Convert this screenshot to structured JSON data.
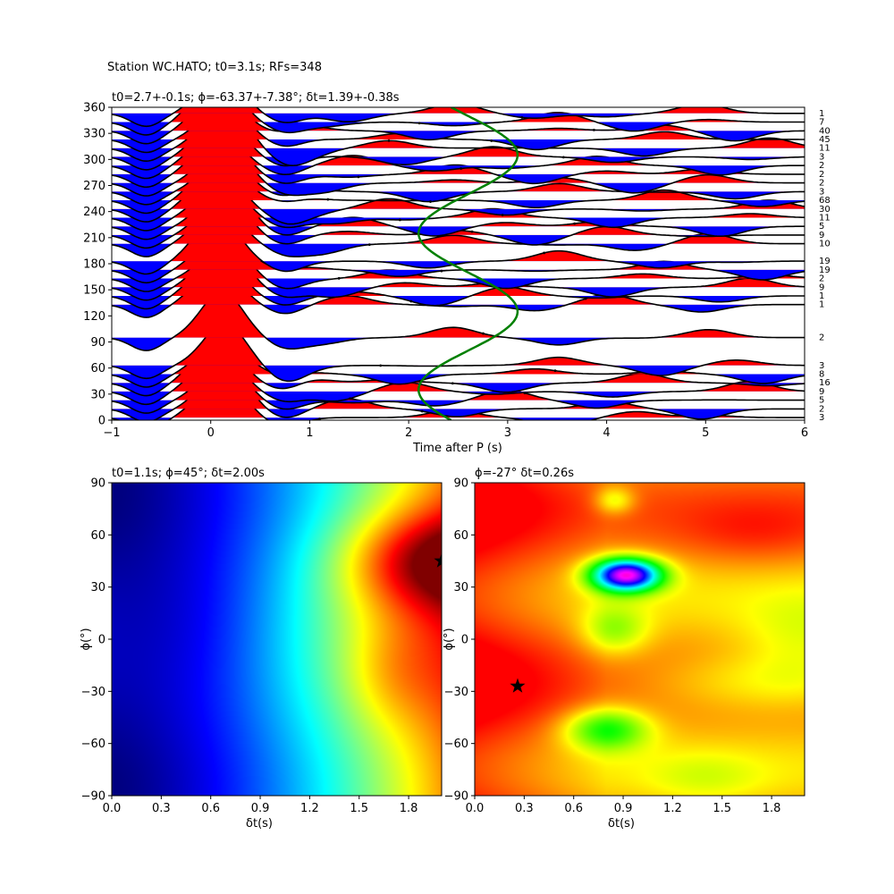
{
  "suptitle": "Station WC.HATO; t0=3.1s; RFs=348",
  "chart_data": [
    {
      "type": "line",
      "title": "t0=2.7+-0.1s; ϕ=-63.37+-7.38°; δt=1.39+-0.38s",
      "xlabel": "Time after P (s)",
      "ylabel": "",
      "xlim": [
        -1,
        6
      ],
      "ylim": [
        0,
        360
      ],
      "xticks": [
        "−1",
        "0",
        "1",
        "2",
        "3",
        "4",
        "5",
        "6"
      ],
      "yticks": [
        "0",
        "30",
        "60",
        "90",
        "120",
        "150",
        "180",
        "210",
        "240",
        "270",
        "300",
        "330",
        "360"
      ],
      "fill_positive_color": "#ff0000",
      "fill_negative_color": "#0000ff",
      "curve_color": "#008000",
      "traces": [
        {
          "baz": 3,
          "count": "3"
        },
        {
          "baz": 13,
          "count": "2"
        },
        {
          "baz": 23,
          "count": "5"
        },
        {
          "baz": 33,
          "count": "9"
        },
        {
          "baz": 43,
          "count": "16"
        },
        {
          "baz": 53,
          "count": "8"
        },
        {
          "baz": 63,
          "count": "3"
        },
        {
          "baz": 95,
          "count": "2"
        },
        {
          "baz": 133,
          "count": "1"
        },
        {
          "baz": 143,
          "count": "1"
        },
        {
          "baz": 153,
          "count": "9"
        },
        {
          "baz": 163,
          "count": "2"
        },
        {
          "baz": 173,
          "count": "19"
        },
        {
          "baz": 183,
          "count": "19"
        },
        {
          "baz": 203,
          "count": "10"
        },
        {
          "baz": 213,
          "count": "9"
        },
        {
          "baz": 223,
          "count": "5"
        },
        {
          "baz": 233,
          "count": "11"
        },
        {
          "baz": 243,
          "count": "30"
        },
        {
          "baz": 253,
          "count": "68"
        },
        {
          "baz": 263,
          "count": "3"
        },
        {
          "baz": 273,
          "count": "2"
        },
        {
          "baz": 283,
          "count": "2"
        },
        {
          "baz": 293,
          "count": "2"
        },
        {
          "baz": 303,
          "count": "3"
        },
        {
          "baz": 313,
          "count": "11"
        },
        {
          "baz": 323,
          "count": "45"
        },
        {
          "baz": 333,
          "count": "40"
        },
        {
          "baz": 343,
          "count": "7"
        },
        {
          "baz": 353,
          "count": "1"
        }
      ]
    },
    {
      "type": "heatmap",
      "title": "t0=1.1s; ϕ=45°; δt=2.00s",
      "xlabel": "δt(s)",
      "ylabel": "ϕ(°)",
      "xlim": [
        0,
        2
      ],
      "ylim": [
        -90,
        90
      ],
      "xticks": [
        "0.0",
        "0.3",
        "0.6",
        "0.9",
        "1.2",
        "1.5",
        "1.8"
      ],
      "yticks": [
        "−90",
        "−60",
        "−30",
        "0",
        "30",
        "60",
        "90"
      ],
      "colormap": "jet",
      "best_fit": {
        "dt": 2.0,
        "phi": 45
      }
    },
    {
      "type": "heatmap",
      "title": "ϕ=-27° δt=0.26s",
      "xlabel": "δt(s)",
      "ylabel": "ϕ(°)",
      "xlim": [
        0,
        2
      ],
      "ylim": [
        -90,
        90
      ],
      "xticks": [
        "0.0",
        "0.3",
        "0.6",
        "0.9",
        "1.2",
        "1.5",
        "1.8"
      ],
      "yticks": [
        "−90",
        "−60",
        "−30",
        "0",
        "30",
        "60",
        "90"
      ],
      "colormap": "hsv",
      "best_fit": {
        "dt": 0.26,
        "phi": -27
      }
    }
  ]
}
